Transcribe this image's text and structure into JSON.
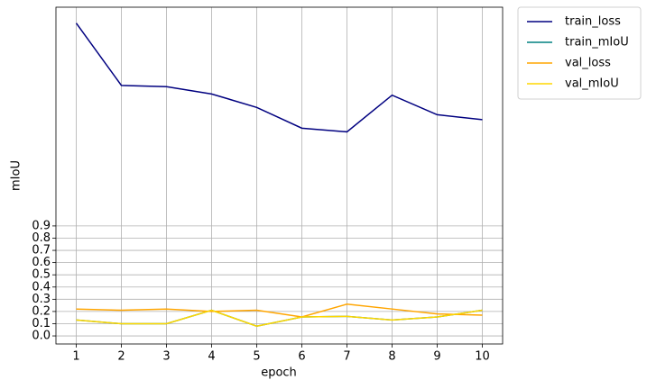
{
  "chart_data": {
    "type": "line",
    "xlabel": "epoch",
    "ylabel": "mIoU",
    "x": [
      1,
      2,
      3,
      4,
      5,
      6,
      7,
      8,
      9,
      10
    ],
    "series": [
      {
        "name": "train_loss",
        "color": "#000080",
        "values": [
          2.56,
          2.05,
          2.04,
          1.98,
          1.87,
          1.7,
          1.67,
          1.97,
          1.81,
          1.77
        ]
      },
      {
        "name": "train_mIoU",
        "color": "#008080",
        "values": [
          0.13,
          0.1,
          0.1,
          0.21,
          0.08,
          0.155,
          0.16,
          0.13,
          0.155,
          0.21
        ]
      },
      {
        "name": "val_loss",
        "color": "#ffa500",
        "values": [
          0.22,
          0.21,
          0.22,
          0.2,
          0.21,
          0.155,
          0.26,
          0.22,
          0.18,
          0.17
        ]
      },
      {
        "name": "val_mIoU",
        "color": "#ffd700",
        "values": [
          0.13,
          0.1,
          0.1,
          0.21,
          0.08,
          0.155,
          0.16,
          0.13,
          0.155,
          0.21
        ]
      }
    ],
    "xlim": [
      0.55,
      10.45
    ],
    "xticks": [
      1,
      2,
      3,
      4,
      5,
      6,
      7,
      8,
      9,
      10
    ],
    "ylim": [
      -0.066,
      2.69
    ],
    "yticks": [
      {
        "value": 0,
        "label": "0.0"
      },
      0.1,
      0.2,
      0.3,
      0.4,
      0.5,
      0.6,
      0.7,
      0.8,
      0.9
    ],
    "grid": true,
    "legend": "outside upper right"
  }
}
